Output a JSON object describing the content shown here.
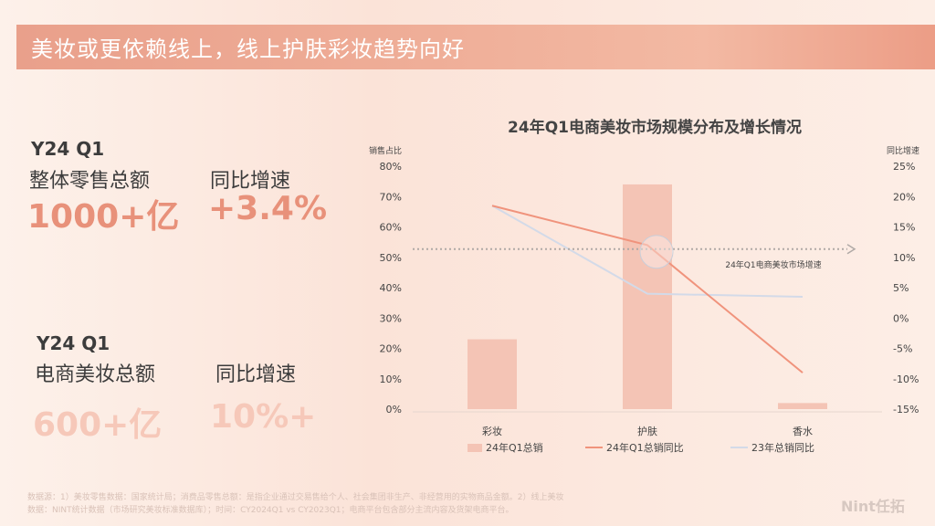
{
  "header": {
    "title": "美妆或更依赖线上，线上护肤彩妆趋势向好"
  },
  "kpis": {
    "total": {
      "period": "Y24 Q1",
      "label_total": "整体零售总额",
      "label_growth": "同比增速",
      "value_total": "1000+亿",
      "value_growth": "+3.4%"
    },
    "ecom": {
      "period": "Y24 Q1",
      "label_total": "电商美妆总额",
      "label_growth": "同比增速",
      "value_total": "600+亿",
      "value_growth": "10%+"
    }
  },
  "chart_data": {
    "type": "bar",
    "title": "24年Q1电商美妆市场规模分布及增长情况",
    "categories": [
      "彩妆",
      "护肤",
      "香水"
    ],
    "left_axis": {
      "label": "销售占比",
      "range": [
        0,
        80
      ],
      "ticks": [
        "0%",
        "10%",
        "20%",
        "30%",
        "40%",
        "50%",
        "60%",
        "70%",
        "80%"
      ]
    },
    "right_axis": {
      "label": "同比增速",
      "range": [
        -15,
        25
      ],
      "ticks": [
        "-15%",
        "-10%",
        "-5%",
        "0%",
        "5%",
        "10%",
        "15%",
        "20%",
        "25%"
      ]
    },
    "series": [
      {
        "name": "24年Q1总销",
        "type": "bar",
        "axis": "left",
        "values": [
          23,
          74,
          2
        ],
        "color": "#f4c4b5"
      },
      {
        "name": "24年Q1总销同比",
        "type": "line",
        "axis": "right",
        "values": [
          18.5,
          12,
          -9
        ],
        "color": "#f0937c"
      },
      {
        "name": "23年总销同比",
        "type": "line",
        "axis": "right",
        "values": [
          18.5,
          4,
          3.5
        ],
        "color": "#d3dae8"
      }
    ],
    "reference_line": {
      "label": "24年Q1电商美妆市场增速",
      "value": 11.5,
      "axis": "right"
    },
    "legend_position": "bottom",
    "grid": false
  },
  "footnote": {
    "line1": "数据源：1）美妆零售数据：国家统计局；消费品零售总额：是指企业通过交易售给个人、社会集团非生产、非经营用的实物商品金额。2）线上美妆",
    "line2": "数据：NINT统计数据（市场研究美妆标准数据库）；时间：CY2024Q1 vs CY2023Q1；电商平台包含部分主流内容及货架电商平台。"
  },
  "brand": {
    "name": "Nint任拓"
  },
  "colors": {
    "accent": "#e8917a",
    "light_accent": "#f6c8b9",
    "bar": "#f4c4b5"
  }
}
